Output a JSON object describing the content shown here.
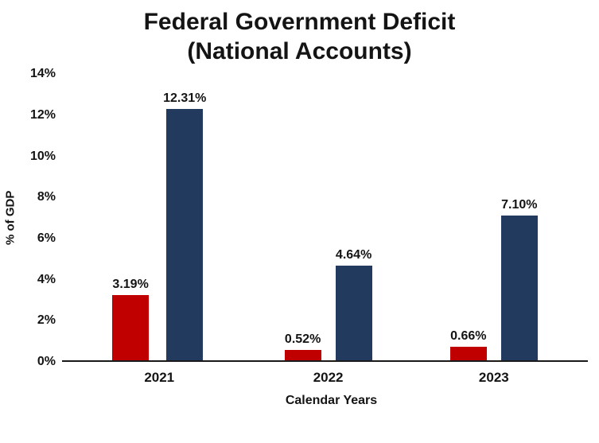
{
  "title": {
    "line1": "Federal Government Deficit",
    "line2": "(National Accounts)"
  },
  "chart_data": {
    "type": "bar",
    "title": "Federal Government Deficit (National Accounts)",
    "categories": [
      "2021",
      "2022",
      "2023"
    ],
    "series": [
      {
        "name": "red-series",
        "color": "#C00000",
        "values": [
          3.19,
          0.52,
          0.66
        ]
      },
      {
        "name": "navy-series",
        "color": "#223A5E",
        "values": [
          12.31,
          4.64,
          7.1
        ]
      }
    ],
    "value_labels": [
      [
        "3.19%",
        "12.31%"
      ],
      [
        "0.52%",
        "4.64%"
      ],
      [
        "0.66%",
        "7.10%"
      ]
    ],
    "xlabel": "Calendar Years",
    "ylabel": "%  of GDP",
    "ylim": [
      0,
      14
    ],
    "yticks": [
      "0%",
      "2%",
      "4%",
      "6%",
      "8%",
      "10%",
      "12%",
      "14%"
    ],
    "grid": false,
    "legend": "none"
  }
}
